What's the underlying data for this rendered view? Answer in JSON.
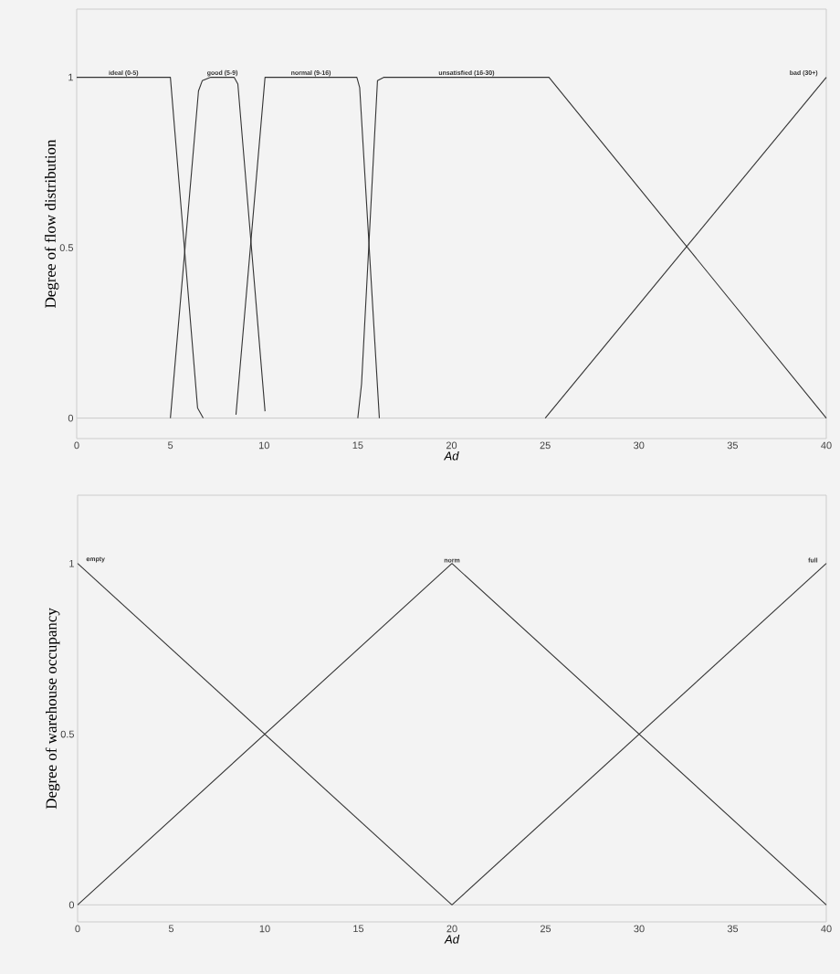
{
  "chart_data": [
    {
      "type": "line",
      "xlabel": "Ad",
      "ylabel": "Degree of flow distribution",
      "xlim": [
        0,
        40
      ],
      "ylim": [
        -0.06,
        1.2
      ],
      "xticks": [
        0,
        5,
        10,
        15,
        20,
        25,
        30,
        35,
        40
      ],
      "yticks": [
        0,
        0.5,
        1
      ],
      "ref_lines": [
        {
          "axis": "y",
          "value": 0,
          "color": "#cccccc"
        }
      ],
      "series": [
        {
          "name": "ideal (0-5)",
          "color": "#333333",
          "x": [
            0,
            5,
            6.45,
            6.75
          ],
          "values": [
            1,
            1,
            0.03,
            0
          ]
        },
        {
          "name": "good (5-9)",
          "color": "#333333",
          "x": [
            5,
            6.5,
            6.7,
            7.15,
            8.4,
            8.6,
            10.05
          ],
          "values": [
            0,
            0.96,
            0.99,
            1,
            1,
            0.98,
            0.02
          ]
        },
        {
          "name": "normal (9-16)",
          "color": "#333333",
          "x": [
            8.5,
            10.05,
            14.95,
            15.1,
            16.15
          ],
          "values": [
            0.01,
            1,
            1,
            0.97,
            0
          ]
        },
        {
          "name": "unsatisfied (16-30)",
          "color": "#333333",
          "x": [
            15,
            15.2,
            16.05,
            16.4,
            25.2,
            40
          ],
          "values": [
            0,
            0.1,
            0.99,
            1,
            1,
            0
          ]
        },
        {
          "name": "bad (30+)",
          "color": "#333333",
          "x": [
            25,
            40
          ],
          "values": [
            0,
            1
          ]
        }
      ]
    },
    {
      "type": "line",
      "xlabel": "Ad",
      "ylabel": "Degree of warehouse occupancy",
      "xlim": [
        0,
        40
      ],
      "ylim": [
        -0.05,
        1.2
      ],
      "xticks": [
        0,
        5,
        10,
        15,
        20,
        25,
        30,
        35,
        40
      ],
      "yticks": [
        0,
        0.5,
        1
      ],
      "ref_lines": [
        {
          "axis": "y",
          "value": 0,
          "color": "#cccccc"
        }
      ],
      "series": [
        {
          "name": "empty",
          "color": "#333333",
          "x": [
            0,
            20
          ],
          "values": [
            1,
            0
          ]
        },
        {
          "name": "norm",
          "color": "#333333",
          "x": [
            0,
            20,
            40
          ],
          "values": [
            0,
            1,
            0
          ]
        },
        {
          "name": "full",
          "color": "#333333",
          "x": [
            20,
            40
          ],
          "values": [
            0,
            1
          ]
        }
      ]
    }
  ]
}
